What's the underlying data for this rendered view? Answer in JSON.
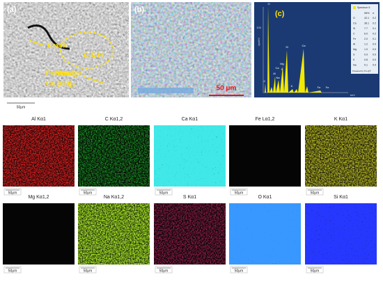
{
  "panels": [
    {
      "label": "(a)",
      "annotations": [
        "Crack",
        "C-S-H",
        "Portlandite",
        "Ca (OH)₂"
      ],
      "scale_bar": "50μm"
    },
    {
      "label": "(b)",
      "scale_bar": "50 μm"
    },
    {
      "label": "(c)",
      "y_axis": "cps/eV",
      "x_axis": "keV",
      "y_tick": "100",
      "peaks": [
        "O",
        "Ca",
        "Si",
        "C",
        "Al",
        "Na",
        "Mg",
        "S",
        "K",
        "Ca",
        "Fe",
        "Fe"
      ],
      "legend": {
        "title": "Spectrum 5",
        "headers": [
          "Wt%",
          "σ"
        ],
        "rows": [
          [
            "O",
            "42.1",
            "0.2"
          ],
          [
            "Ca",
            "38.1",
            "0.2"
          ],
          [
            "Si",
            "7.7",
            "0.1"
          ],
          [
            "C",
            "6.0",
            "0.2"
          ],
          [
            "Fe",
            "2.0",
            "0.1"
          ],
          [
            "Al",
            "1.2",
            "0.0"
          ],
          [
            "Mg",
            "1.0",
            "0.0"
          ],
          [
            "S",
            "0.9",
            "0.0"
          ],
          [
            "K",
            "0.8",
            "0.0"
          ],
          [
            "Na",
            "0.1",
            "0.0"
          ]
        ],
        "footer": "Powered by Tru-Q®"
      }
    }
  ],
  "maps": [
    {
      "title": "Al Kα1",
      "scale_bar": "50μm",
      "color": "#e82020"
    },
    {
      "title": "C Kα1,2",
      "scale_bar": "50μm",
      "color": "#22c830"
    },
    {
      "title": "Ca Kα1",
      "scale_bar": "50μm",
      "color": "#40e8e8"
    },
    {
      "title": "Fe Lα1,2",
      "scale_bar": "50μm",
      "color": "#b040b0"
    },
    {
      "title": "K Kα1",
      "scale_bar": "50μm",
      "color": "#c8c828"
    },
    {
      "title": "Mg Kα1,2",
      "scale_bar": "50μm",
      "color": "#d06818"
    },
    {
      "title": "Na Kα1,2",
      "scale_bar": "50μm",
      "color": "#a8e828"
    },
    {
      "title": "S Kα1",
      "scale_bar": "50μm",
      "color": "#d02868"
    },
    {
      "title": "O Kα1",
      "scale_bar": "50μm",
      "color": "#3898ff"
    },
    {
      "title": "Si Kα1",
      "scale_bar": "50μm",
      "color": "#2838ff"
    }
  ]
}
